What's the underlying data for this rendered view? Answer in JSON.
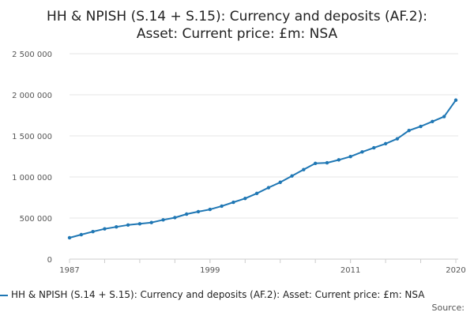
{
  "title": {
    "line1": "HH & NPISH (S.14 + S.15): Currency and deposits (AF.2):",
    "line2": "Asset: Current price: £m: NSA"
  },
  "source_label": "Source:",
  "colors": {
    "series": "#1f77b4",
    "grid": "#e6e6e6",
    "axis": "#cccccc"
  },
  "chart_data": {
    "type": "line",
    "title": "HH & NPISH (S.14 + S.15): Currency and deposits (AF.2): Asset: Current price: £m: NSA",
    "xlabel": "",
    "ylabel": "",
    "x_ticks": [
      "1987",
      "1999",
      "2011",
      "2020"
    ],
    "y_ticks": [
      "0",
      "500 000",
      "1 000 000",
      "1 500 000",
      "2 000 000",
      "2 500 000"
    ],
    "ylim": [
      0,
      2500000
    ],
    "xlim": [
      1987,
      2020
    ],
    "grid": true,
    "legend_position": "bottom",
    "series": [
      {
        "name": "HH & NPISH (S.14 + S.15): Currency and deposits (AF.2): Asset: Current price: £m: NSA",
        "x": [
          1987,
          1988,
          1989,
          1990,
          1991,
          1992,
          1993,
          1994,
          1995,
          1996,
          1997,
          1998,
          1999,
          2000,
          2001,
          2002,
          2003,
          2004,
          2005,
          2006,
          2007,
          2008,
          2009,
          2010,
          2011,
          2012,
          2013,
          2014,
          2015,
          2016,
          2017,
          2018,
          2019,
          2020
        ],
        "values": [
          260000,
          298000,
          335000,
          368000,
          392000,
          415000,
          430000,
          445000,
          478000,
          505000,
          548000,
          578000,
          605000,
          645000,
          692000,
          738000,
          800000,
          870000,
          935000,
          1012000,
          1090000,
          1165000,
          1172000,
          1208000,
          1248000,
          1305000,
          1355000,
          1405000,
          1465000,
          1565000,
          1615000,
          1675000,
          1735000,
          1935000
        ]
      }
    ]
  }
}
